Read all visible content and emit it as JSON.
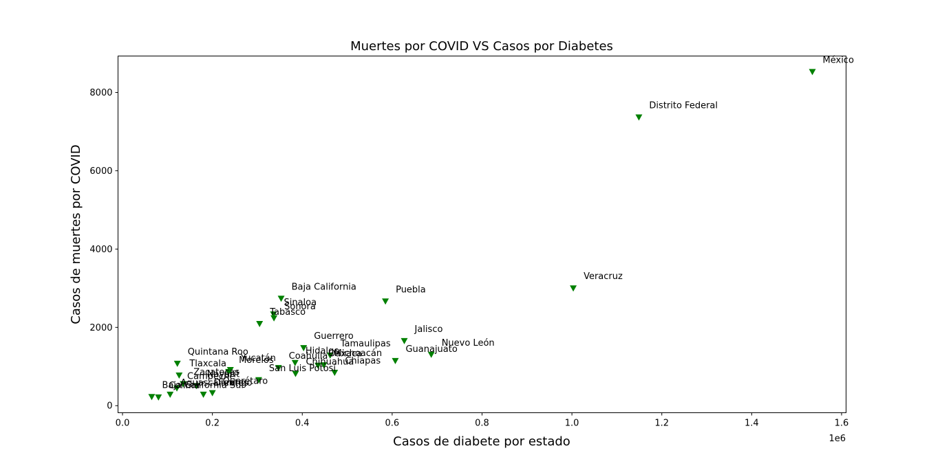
{
  "chart_data": {
    "type": "scatter",
    "title": "Muertes por COVID VS Casos por Diabetes",
    "xlabel": "Casos de diabete por estado",
    "ylabel": "Casos de muertes por COVID",
    "x_offset_label": "1e6",
    "xlim": [
      -0.01,
      1.61
    ],
    "ylim": [
      -180,
      8930
    ],
    "xticks": [
      0.0,
      0.2,
      0.4,
      0.6,
      0.8,
      1.0,
      1.2,
      1.4,
      1.6
    ],
    "xtick_labels": [
      "0.0",
      "0.2",
      "0.4",
      "0.6",
      "0.8",
      "1.0",
      "1.2",
      "1.4",
      "1.6"
    ],
    "yticks": [
      0,
      2000,
      4000,
      6000,
      8000
    ],
    "ytick_labels": [
      "0",
      "2000",
      "4000",
      "6000",
      "8000"
    ],
    "grid": false,
    "marker_color": "#008000",
    "points": [
      {
        "label": "México",
        "x": 1.535,
        "y": 8510
      },
      {
        "label": "Distrito Federal",
        "x": 1.149,
        "y": 7350
      },
      {
        "label": "Veracruz",
        "x": 1.003,
        "y": 2985
      },
      {
        "label": "Puebla",
        "x": 0.585,
        "y": 2650
      },
      {
        "label": "Baja California",
        "x": 0.353,
        "y": 2720
      },
      {
        "label": "Sinaloa",
        "x": 0.336,
        "y": 2320
      },
      {
        "label": "Sonora",
        "x": 0.337,
        "y": 2220
      },
      {
        "label": "Tabasco",
        "x": 0.305,
        "y": 2075
      },
      {
        "label": "Jalisco",
        "x": 0.627,
        "y": 1640
      },
      {
        "label": "Nuevo León",
        "x": 0.687,
        "y": 1290
      },
      {
        "label": "Guanajuato",
        "x": 0.607,
        "y": 1130
      },
      {
        "label": "Guerrero",
        "x": 0.403,
        "y": 1460
      },
      {
        "label": "Tamaulipas",
        "x": 0.462,
        "y": 1270
      },
      {
        "label": "Hidalgo",
        "x": 0.384,
        "y": 1080
      },
      {
        "label": "Oaxaca",
        "x": 0.435,
        "y": 1010
      },
      {
        "label": "Chiapas",
        "x": 0.472,
        "y": 830
      },
      {
        "label": "Chihuahua",
        "x": 0.385,
        "y": 800
      },
      {
        "label": "Michoacán",
        "x": 0.448,
        "y": 1020
      },
      {
        "label": "Coahuila",
        "x": 0.347,
        "y": 950
      },
      {
        "label": "San Luis Potosí",
        "x": 0.303,
        "y": 640
      },
      {
        "label": "Yucatán",
        "x": 0.24,
        "y": 900
      },
      {
        "label": "Morelos",
        "x": 0.236,
        "y": 850
      },
      {
        "label": "Quintana Roo",
        "x": 0.122,
        "y": 1060
      },
      {
        "label": "Tlaxcala",
        "x": 0.126,
        "y": 760
      },
      {
        "label": "Campeche",
        "x": 0.121,
        "y": 430
      },
      {
        "label": "Querétaro",
        "x": 0.2,
        "y": 310
      },
      {
        "label": "Nayarit",
        "x": 0.165,
        "y": 490
      },
      {
        "label": "Durango",
        "x": 0.18,
        "y": 270
      },
      {
        "label": "Zacatecas",
        "x": 0.135,
        "y": 540
      },
      {
        "label": "Aguascalientes",
        "x": 0.106,
        "y": 270
      },
      {
        "label": "Colima",
        "x": 0.08,
        "y": 200
      },
      {
        "label": "Baja California Sur",
        "x": 0.065,
        "y": 210
      }
    ]
  }
}
